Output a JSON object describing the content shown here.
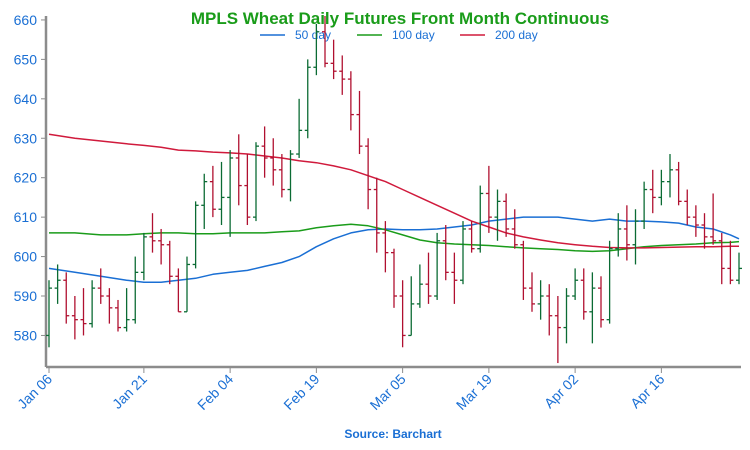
{
  "chart_data": {
    "type": "ohlc",
    "title": "MPLS Wheat Daily Futures Front Month Continuous",
    "source": "Source: Barchart",
    "ylim": [
      572,
      661
    ],
    "y_ticks": [
      580,
      590,
      600,
      610,
      620,
      630,
      640,
      650,
      660
    ],
    "x_tick_labels": [
      "Jan 06",
      "Jan 21",
      "Feb 04",
      "Feb 19",
      "Mar 05",
      "Mar 19",
      "Apr 02",
      "Apr 16"
    ],
    "x_tick_index": [
      0,
      11,
      21,
      31,
      41,
      51,
      61,
      71
    ],
    "grid": false,
    "legend_placement": "top-center",
    "colors": {
      "title": "#1a9c1a",
      "up": "#0b6b34",
      "down": "#b01030",
      "tick_label": "#1a6fd4",
      "axis": "#8c8c8c",
      "ma50": "#1a6fd4",
      "ma100": "#1a9c1a",
      "ma200": "#d01a3c",
      "source": "#1a6fd4"
    },
    "candles": [
      {
        "date": "Jan 06",
        "o": 580,
        "h": 594,
        "l": 577,
        "c": 592
      },
      {
        "date": "",
        "o": 592,
        "h": 598,
        "l": 588,
        "c": 594
      },
      {
        "date": "",
        "o": 594,
        "h": 596,
        "l": 583,
        "c": 585
      },
      {
        "date": "",
        "o": 585,
        "h": 590,
        "l": 579,
        "c": 584
      },
      {
        "date": "",
        "o": 584,
        "h": 592,
        "l": 580,
        "c": 583
      },
      {
        "date": "",
        "o": 583,
        "h": 594,
        "l": 582,
        "c": 592
      },
      {
        "date": "",
        "o": 592,
        "h": 597,
        "l": 588,
        "c": 590
      },
      {
        "date": "",
        "o": 590,
        "h": 592,
        "l": 583,
        "c": 587
      },
      {
        "date": "",
        "o": 587,
        "h": 589,
        "l": 581,
        "c": 582
      },
      {
        "date": "",
        "o": 582,
        "h": 592,
        "l": 581,
        "c": 584
      },
      {
        "date": "",
        "o": 584,
        "h": 600,
        "l": 583,
        "c": 596
      },
      {
        "date": "Jan 21",
        "o": 596,
        "h": 606,
        "l": 594,
        "c": 605
      },
      {
        "date": "",
        "o": 605,
        "h": 611,
        "l": 601,
        "c": 604
      },
      {
        "date": "",
        "o": 604,
        "h": 607,
        "l": 598,
        "c": 603
      },
      {
        "date": "",
        "o": 603,
        "h": 604,
        "l": 593,
        "c": 595
      },
      {
        "date": "",
        "o": 595,
        "h": 597,
        "l": 586,
        "c": 586
      },
      {
        "date": "",
        "o": 586,
        "h": 600,
        "l": 586,
        "c": 598
      },
      {
        "date": "",
        "o": 598,
        "h": 614,
        "l": 597,
        "c": 613
      },
      {
        "date": "",
        "o": 613,
        "h": 621,
        "l": 607,
        "c": 619
      },
      {
        "date": "",
        "o": 619,
        "h": 623,
        "l": 610,
        "c": 612
      },
      {
        "date": "",
        "o": 612,
        "h": 624,
        "l": 608,
        "c": 615
      },
      {
        "date": "Feb 04",
        "o": 615,
        "h": 627,
        "l": 605,
        "c": 625
      },
      {
        "date": "",
        "o": 625,
        "h": 631,
        "l": 613,
        "c": 618
      },
      {
        "date": "",
        "o": 618,
        "h": 626,
        "l": 608,
        "c": 610
      },
      {
        "date": "",
        "o": 610,
        "h": 629,
        "l": 609,
        "c": 628
      },
      {
        "date": "",
        "o": 628,
        "h": 633,
        "l": 620,
        "c": 625
      },
      {
        "date": "",
        "o": 625,
        "h": 630,
        "l": 618,
        "c": 622
      },
      {
        "date": "",
        "o": 622,
        "h": 626,
        "l": 615,
        "c": 617
      },
      {
        "date": "",
        "o": 617,
        "h": 627,
        "l": 614,
        "c": 626
      },
      {
        "date": "",
        "o": 626,
        "h": 640,
        "l": 625,
        "c": 632
      },
      {
        "date": "",
        "o": 632,
        "h": 650,
        "l": 630,
        "c": 648
      },
      {
        "date": "Feb 19",
        "o": 648,
        "h": 659,
        "l": 646,
        "c": 657
      },
      {
        "date": "",
        "o": 657,
        "h": 661,
        "l": 648,
        "c": 649
      },
      {
        "date": "",
        "o": 649,
        "h": 655,
        "l": 645,
        "c": 647
      },
      {
        "date": "",
        "o": 647,
        "h": 651,
        "l": 641,
        "c": 645
      },
      {
        "date": "",
        "o": 645,
        "h": 647,
        "l": 632,
        "c": 636
      },
      {
        "date": "",
        "o": 636,
        "h": 642,
        "l": 626,
        "c": 628
      },
      {
        "date": "",
        "o": 628,
        "h": 630,
        "l": 612,
        "c": 617
      },
      {
        "date": "",
        "o": 617,
        "h": 620,
        "l": 601,
        "c": 606
      },
      {
        "date": "",
        "o": 606,
        "h": 609,
        "l": 596,
        "c": 601
      },
      {
        "date": "",
        "o": 601,
        "h": 602,
        "l": 587,
        "c": 590
      },
      {
        "date": "Mar 05",
        "o": 590,
        "h": 594,
        "l": 577,
        "c": 580
      },
      {
        "date": "",
        "o": 580,
        "h": 595,
        "l": 580,
        "c": 588
      },
      {
        "date": "",
        "o": 588,
        "h": 598,
        "l": 587,
        "c": 593
      },
      {
        "date": "",
        "o": 593,
        "h": 601,
        "l": 588,
        "c": 590
      },
      {
        "date": "",
        "o": 590,
        "h": 606,
        "l": 589,
        "c": 604
      },
      {
        "date": "",
        "o": 604,
        "h": 608,
        "l": 594,
        "c": 596
      },
      {
        "date": "",
        "o": 596,
        "h": 601,
        "l": 588,
        "c": 594
      },
      {
        "date": "",
        "o": 594,
        "h": 609,
        "l": 593,
        "c": 607
      },
      {
        "date": "",
        "o": 607,
        "h": 609,
        "l": 601,
        "c": 602
      },
      {
        "date": "",
        "o": 602,
        "h": 618,
        "l": 601,
        "c": 616
      },
      {
        "date": "Mar 19",
        "o": 616,
        "h": 623,
        "l": 606,
        "c": 610
      },
      {
        "date": "",
        "o": 610,
        "h": 617,
        "l": 604,
        "c": 614
      },
      {
        "date": "",
        "o": 614,
        "h": 616,
        "l": 605,
        "c": 607
      },
      {
        "date": "",
        "o": 607,
        "h": 612,
        "l": 602,
        "c": 603
      },
      {
        "date": "",
        "o": 603,
        "h": 604,
        "l": 589,
        "c": 592
      },
      {
        "date": "",
        "o": 592,
        "h": 596,
        "l": 586,
        "c": 588
      },
      {
        "date": "",
        "o": 588,
        "h": 594,
        "l": 584,
        "c": 590
      },
      {
        "date": "",
        "o": 590,
        "h": 593,
        "l": 580,
        "c": 585
      },
      {
        "date": "",
        "o": 585,
        "h": 590,
        "l": 573,
        "c": 582
      },
      {
        "date": "",
        "o": 582,
        "h": 592,
        "l": 578,
        "c": 590
      },
      {
        "date": "Apr 02",
        "o": 590,
        "h": 597,
        "l": 589,
        "c": 594
      },
      {
        "date": "",
        "o": 594,
        "h": 597,
        "l": 584,
        "c": 586
      },
      {
        "date": "",
        "o": 586,
        "h": 596,
        "l": 578,
        "c": 592
      },
      {
        "date": "",
        "o": 592,
        "h": 595,
        "l": 582,
        "c": 584
      },
      {
        "date": "",
        "o": 584,
        "h": 604,
        "l": 583,
        "c": 602
      },
      {
        "date": "",
        "o": 602,
        "h": 611,
        "l": 600,
        "c": 607
      },
      {
        "date": "",
        "o": 607,
        "h": 613,
        "l": 599,
        "c": 603
      },
      {
        "date": "",
        "o": 603,
        "h": 612,
        "l": 598,
        "c": 609
      },
      {
        "date": "",
        "o": 609,
        "h": 619,
        "l": 607,
        "c": 617
      },
      {
        "date": "",
        "o": 617,
        "h": 622,
        "l": 611,
        "c": 615
      },
      {
        "date": "",
        "o": 615,
        "h": 622,
        "l": 613,
        "c": 619
      },
      {
        "date": "Apr 16",
        "o": 619,
        "h": 626,
        "l": 615,
        "c": 622
      },
      {
        "date": "",
        "o": 622,
        "h": 624,
        "l": 613,
        "c": 614
      },
      {
        "date": "",
        "o": 614,
        "h": 617,
        "l": 608,
        "c": 610
      },
      {
        "date": "",
        "o": 610,
        "h": 613,
        "l": 605,
        "c": 608
      },
      {
        "date": "",
        "o": 608,
        "h": 611,
        "l": 602,
        "c": 605
      },
      {
        "date": "",
        "o": 605,
        "h": 616,
        "l": 603,
        "c": 604
      },
      {
        "date": "",
        "o": 604,
        "h": 606,
        "l": 593,
        "c": 597
      },
      {
        "date": "",
        "o": 597,
        "h": 604,
        "l": 593,
        "c": 594
      },
      {
        "date": "",
        "o": 594,
        "h": 601,
        "l": 593,
        "c": 597
      }
    ],
    "series": [
      {
        "name": "50 day",
        "color": "#1a6fd4",
        "index": [
          0,
          3,
          6,
          9,
          11,
          13,
          15,
          17,
          19,
          21,
          23,
          25,
          27,
          29,
          31,
          33,
          35,
          37,
          39,
          41,
          43,
          45,
          47,
          49,
          51,
          53,
          55,
          57,
          59,
          61,
          63,
          65,
          67,
          69,
          71,
          73,
          75,
          77,
          79,
          80
        ],
        "values": [
          597,
          596,
          595,
          594,
          593.5,
          593.5,
          594,
          594.5,
          595.5,
          596,
          596.5,
          597.5,
          598.5,
          600,
          602.5,
          604.5,
          606,
          606.8,
          607,
          606.8,
          606.8,
          607,
          607.5,
          608,
          609,
          609.5,
          610,
          610,
          610,
          609.5,
          609,
          609.5,
          609,
          609,
          608.8,
          608.5,
          607.5,
          607,
          605.5,
          604.5
        ]
      },
      {
        "name": "100 day",
        "color": "#1a9c1a",
        "index": [
          0,
          3,
          6,
          9,
          11,
          13,
          15,
          17,
          19,
          21,
          23,
          25,
          27,
          29,
          31,
          33,
          35,
          37,
          39,
          41,
          43,
          45,
          47,
          49,
          51,
          53,
          55,
          57,
          59,
          61,
          63,
          65,
          67,
          69,
          71,
          73,
          75,
          77,
          79,
          80
        ],
        "values": [
          606,
          606,
          605.5,
          605.5,
          605.8,
          606,
          606,
          605.8,
          605.8,
          606,
          606,
          606,
          606.3,
          606.5,
          607.3,
          607.8,
          608.2,
          607.8,
          606.8,
          605.5,
          604.2,
          603.5,
          603.2,
          603,
          602.8,
          602.5,
          602.2,
          602,
          601.8,
          601.5,
          601.3,
          601.5,
          602,
          602.5,
          602.8,
          603,
          603.2,
          603.5,
          603.6,
          603.8
        ]
      },
      {
        "name": "200 day",
        "color": "#d01a3c",
        "index": [
          0,
          3,
          6,
          9,
          11,
          13,
          15,
          17,
          19,
          21,
          23,
          25,
          27,
          29,
          31,
          33,
          35,
          37,
          39,
          41,
          43,
          45,
          47,
          49,
          51,
          53,
          55,
          57,
          59,
          61,
          63,
          65,
          67,
          69,
          71,
          73,
          75,
          77,
          79,
          80
        ],
        "values": [
          631,
          630,
          629.3,
          628.6,
          628.2,
          627.7,
          627,
          626.8,
          626.5,
          626.3,
          626,
          625.5,
          625,
          624.3,
          623.8,
          623,
          622,
          620.5,
          619,
          617,
          615,
          613,
          611,
          609,
          607.5,
          606,
          605,
          604.2,
          603.5,
          603,
          602.6,
          602.3,
          602.2,
          602.2,
          602.3,
          602.4,
          602.5,
          602.5,
          602.6,
          602.6
        ]
      }
    ]
  }
}
